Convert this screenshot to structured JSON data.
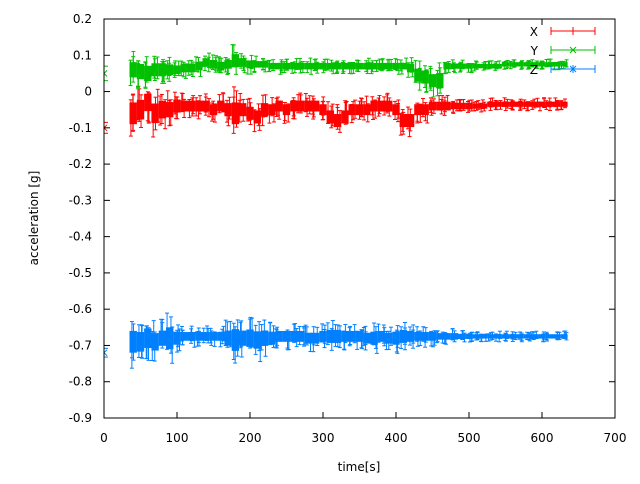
{
  "chart_data": {
    "type": "scatter",
    "title": "",
    "xlabel": "time[s]",
    "ylabel": "acceleration [g]",
    "xlim": [
      0,
      700
    ],
    "ylim": [
      -0.9,
      0.2
    ],
    "xticks": [
      "0",
      "100",
      "200",
      "300",
      "400",
      "500",
      "600",
      "700"
    ],
    "yticks": [
      "0.2",
      "0.1",
      "0",
      "-0.1",
      "-0.2",
      "-0.3",
      "-0.4",
      "-0.5",
      "-0.6",
      "-0.7",
      "-0.8",
      "-0.9"
    ],
    "grid": false,
    "legend": "top-right",
    "error_bars": true,
    "x": [
      0,
      40,
      50,
      60,
      70,
      80,
      90,
      100,
      110,
      120,
      130,
      140,
      150,
      160,
      170,
      180,
      190,
      200,
      210,
      220,
      230,
      240,
      250,
      260,
      270,
      280,
      290,
      300,
      310,
      320,
      330,
      340,
      350,
      360,
      370,
      380,
      390,
      400,
      410,
      420,
      430,
      440,
      450,
      460,
      470,
      480,
      490,
      500,
      510,
      520,
      530,
      540,
      550,
      560,
      570,
      580,
      590,
      600,
      610,
      620,
      630
    ],
    "series": [
      {
        "name": "X",
        "color": "#ff0000",
        "marker": "plus",
        "values": [
          -0.1,
          -0.06,
          -0.05,
          -0.03,
          -0.06,
          -0.05,
          -0.05,
          -0.04,
          -0.04,
          -0.04,
          -0.04,
          -0.04,
          -0.05,
          -0.04,
          -0.05,
          -0.06,
          -0.05,
          -0.06,
          -0.07,
          -0.05,
          -0.05,
          -0.04,
          -0.05,
          -0.04,
          -0.04,
          -0.04,
          -0.04,
          -0.05,
          -0.07,
          -0.08,
          -0.07,
          -0.05,
          -0.05,
          -0.05,
          -0.04,
          -0.04,
          -0.04,
          -0.05,
          -0.08,
          -0.08,
          -0.05,
          -0.05,
          -0.04,
          -0.04,
          -0.04,
          -0.04,
          -0.04,
          -0.04,
          -0.04,
          -0.04,
          -0.035,
          -0.035,
          -0.035,
          -0.035,
          -0.035,
          -0.035,
          -0.035,
          -0.035,
          -0.035,
          -0.035,
          -0.035
        ],
        "errors": [
          0.015,
          0.05,
          0.045,
          0.04,
          0.045,
          0.04,
          0.035,
          0.03,
          0.025,
          0.025,
          0.025,
          0.025,
          0.025,
          0.025,
          0.03,
          0.05,
          0.03,
          0.03,
          0.03,
          0.03,
          0.025,
          0.025,
          0.025,
          0.025,
          0.025,
          0.025,
          0.025,
          0.025,
          0.03,
          0.03,
          0.03,
          0.025,
          0.025,
          0.025,
          0.025,
          0.025,
          0.025,
          0.025,
          0.03,
          0.03,
          0.025,
          0.025,
          0.02,
          0.02,
          0.02,
          0.015,
          0.015,
          0.015,
          0.012,
          0.012,
          0.012,
          0.012,
          0.012,
          0.012,
          0.012,
          0.012,
          0.012,
          0.012,
          0.012,
          0.012,
          0.012
        ]
      },
      {
        "name": "Y",
        "color": "#00c000",
        "marker": "cross",
        "values": [
          0.05,
          0.06,
          0.055,
          0.05,
          0.06,
          0.06,
          0.06,
          0.06,
          0.065,
          0.065,
          0.07,
          0.08,
          0.075,
          0.07,
          0.075,
          0.085,
          0.08,
          0.075,
          0.075,
          0.075,
          0.07,
          0.07,
          0.07,
          0.07,
          0.07,
          0.07,
          0.07,
          0.07,
          0.07,
          0.07,
          0.07,
          0.07,
          0.07,
          0.07,
          0.07,
          0.07,
          0.07,
          0.07,
          0.07,
          0.065,
          0.045,
          0.04,
          0.03,
          0.03,
          0.07,
          0.07,
          0.07,
          0.07,
          0.07,
          0.07,
          0.07,
          0.07,
          0.075,
          0.075,
          0.075,
          0.075,
          0.075,
          0.075,
          0.075,
          0.075,
          0.075
        ],
        "errors": [
          0.02,
          0.035,
          0.035,
          0.035,
          0.03,
          0.03,
          0.025,
          0.02,
          0.02,
          0.02,
          0.02,
          0.02,
          0.02,
          0.02,
          0.02,
          0.03,
          0.02,
          0.018,
          0.015,
          0.015,
          0.015,
          0.015,
          0.015,
          0.015,
          0.015,
          0.015,
          0.015,
          0.015,
          0.015,
          0.015,
          0.015,
          0.015,
          0.015,
          0.015,
          0.015,
          0.015,
          0.015,
          0.015,
          0.015,
          0.02,
          0.03,
          0.03,
          0.03,
          0.035,
          0.015,
          0.012,
          0.012,
          0.012,
          0.01,
          0.01,
          0.01,
          0.01,
          0.01,
          0.01,
          0.01,
          0.01,
          0.01,
          0.01,
          0.01,
          0.01,
          0.01
        ]
      },
      {
        "name": "Z",
        "color": "#0080ff",
        "marker": "star",
        "values": [
          -0.72,
          -0.69,
          -0.69,
          -0.68,
          -0.69,
          -0.68,
          -0.68,
          -0.68,
          -0.675,
          -0.675,
          -0.675,
          -0.675,
          -0.675,
          -0.675,
          -0.68,
          -0.685,
          -0.68,
          -0.68,
          -0.685,
          -0.68,
          -0.68,
          -0.675,
          -0.675,
          -0.675,
          -0.675,
          -0.68,
          -0.68,
          -0.675,
          -0.675,
          -0.675,
          -0.675,
          -0.675,
          -0.675,
          -0.68,
          -0.68,
          -0.675,
          -0.68,
          -0.68,
          -0.675,
          -0.675,
          -0.675,
          -0.675,
          -0.675,
          -0.675,
          -0.675,
          -0.675,
          -0.675,
          -0.675,
          -0.675,
          -0.675,
          -0.675,
          -0.675,
          -0.675,
          -0.675,
          -0.675,
          -0.675,
          -0.675,
          -0.675,
          -0.675,
          -0.675,
          -0.675
        ],
        "errors": [
          0.012,
          0.05,
          0.045,
          0.045,
          0.04,
          0.035,
          0.05,
          0.03,
          0.02,
          0.02,
          0.02,
          0.02,
          0.02,
          0.02,
          0.035,
          0.05,
          0.035,
          0.04,
          0.04,
          0.035,
          0.03,
          0.025,
          0.025,
          0.025,
          0.025,
          0.025,
          0.025,
          0.025,
          0.03,
          0.03,
          0.025,
          0.025,
          0.025,
          0.025,
          0.03,
          0.025,
          0.025,
          0.03,
          0.03,
          0.025,
          0.02,
          0.02,
          0.02,
          0.015,
          0.015,
          0.015,
          0.012,
          0.012,
          0.01,
          0.01,
          0.01,
          0.01,
          0.01,
          0.01,
          0.01,
          0.01,
          0.01,
          0.01,
          0.01,
          0.01,
          0.01
        ]
      }
    ]
  }
}
